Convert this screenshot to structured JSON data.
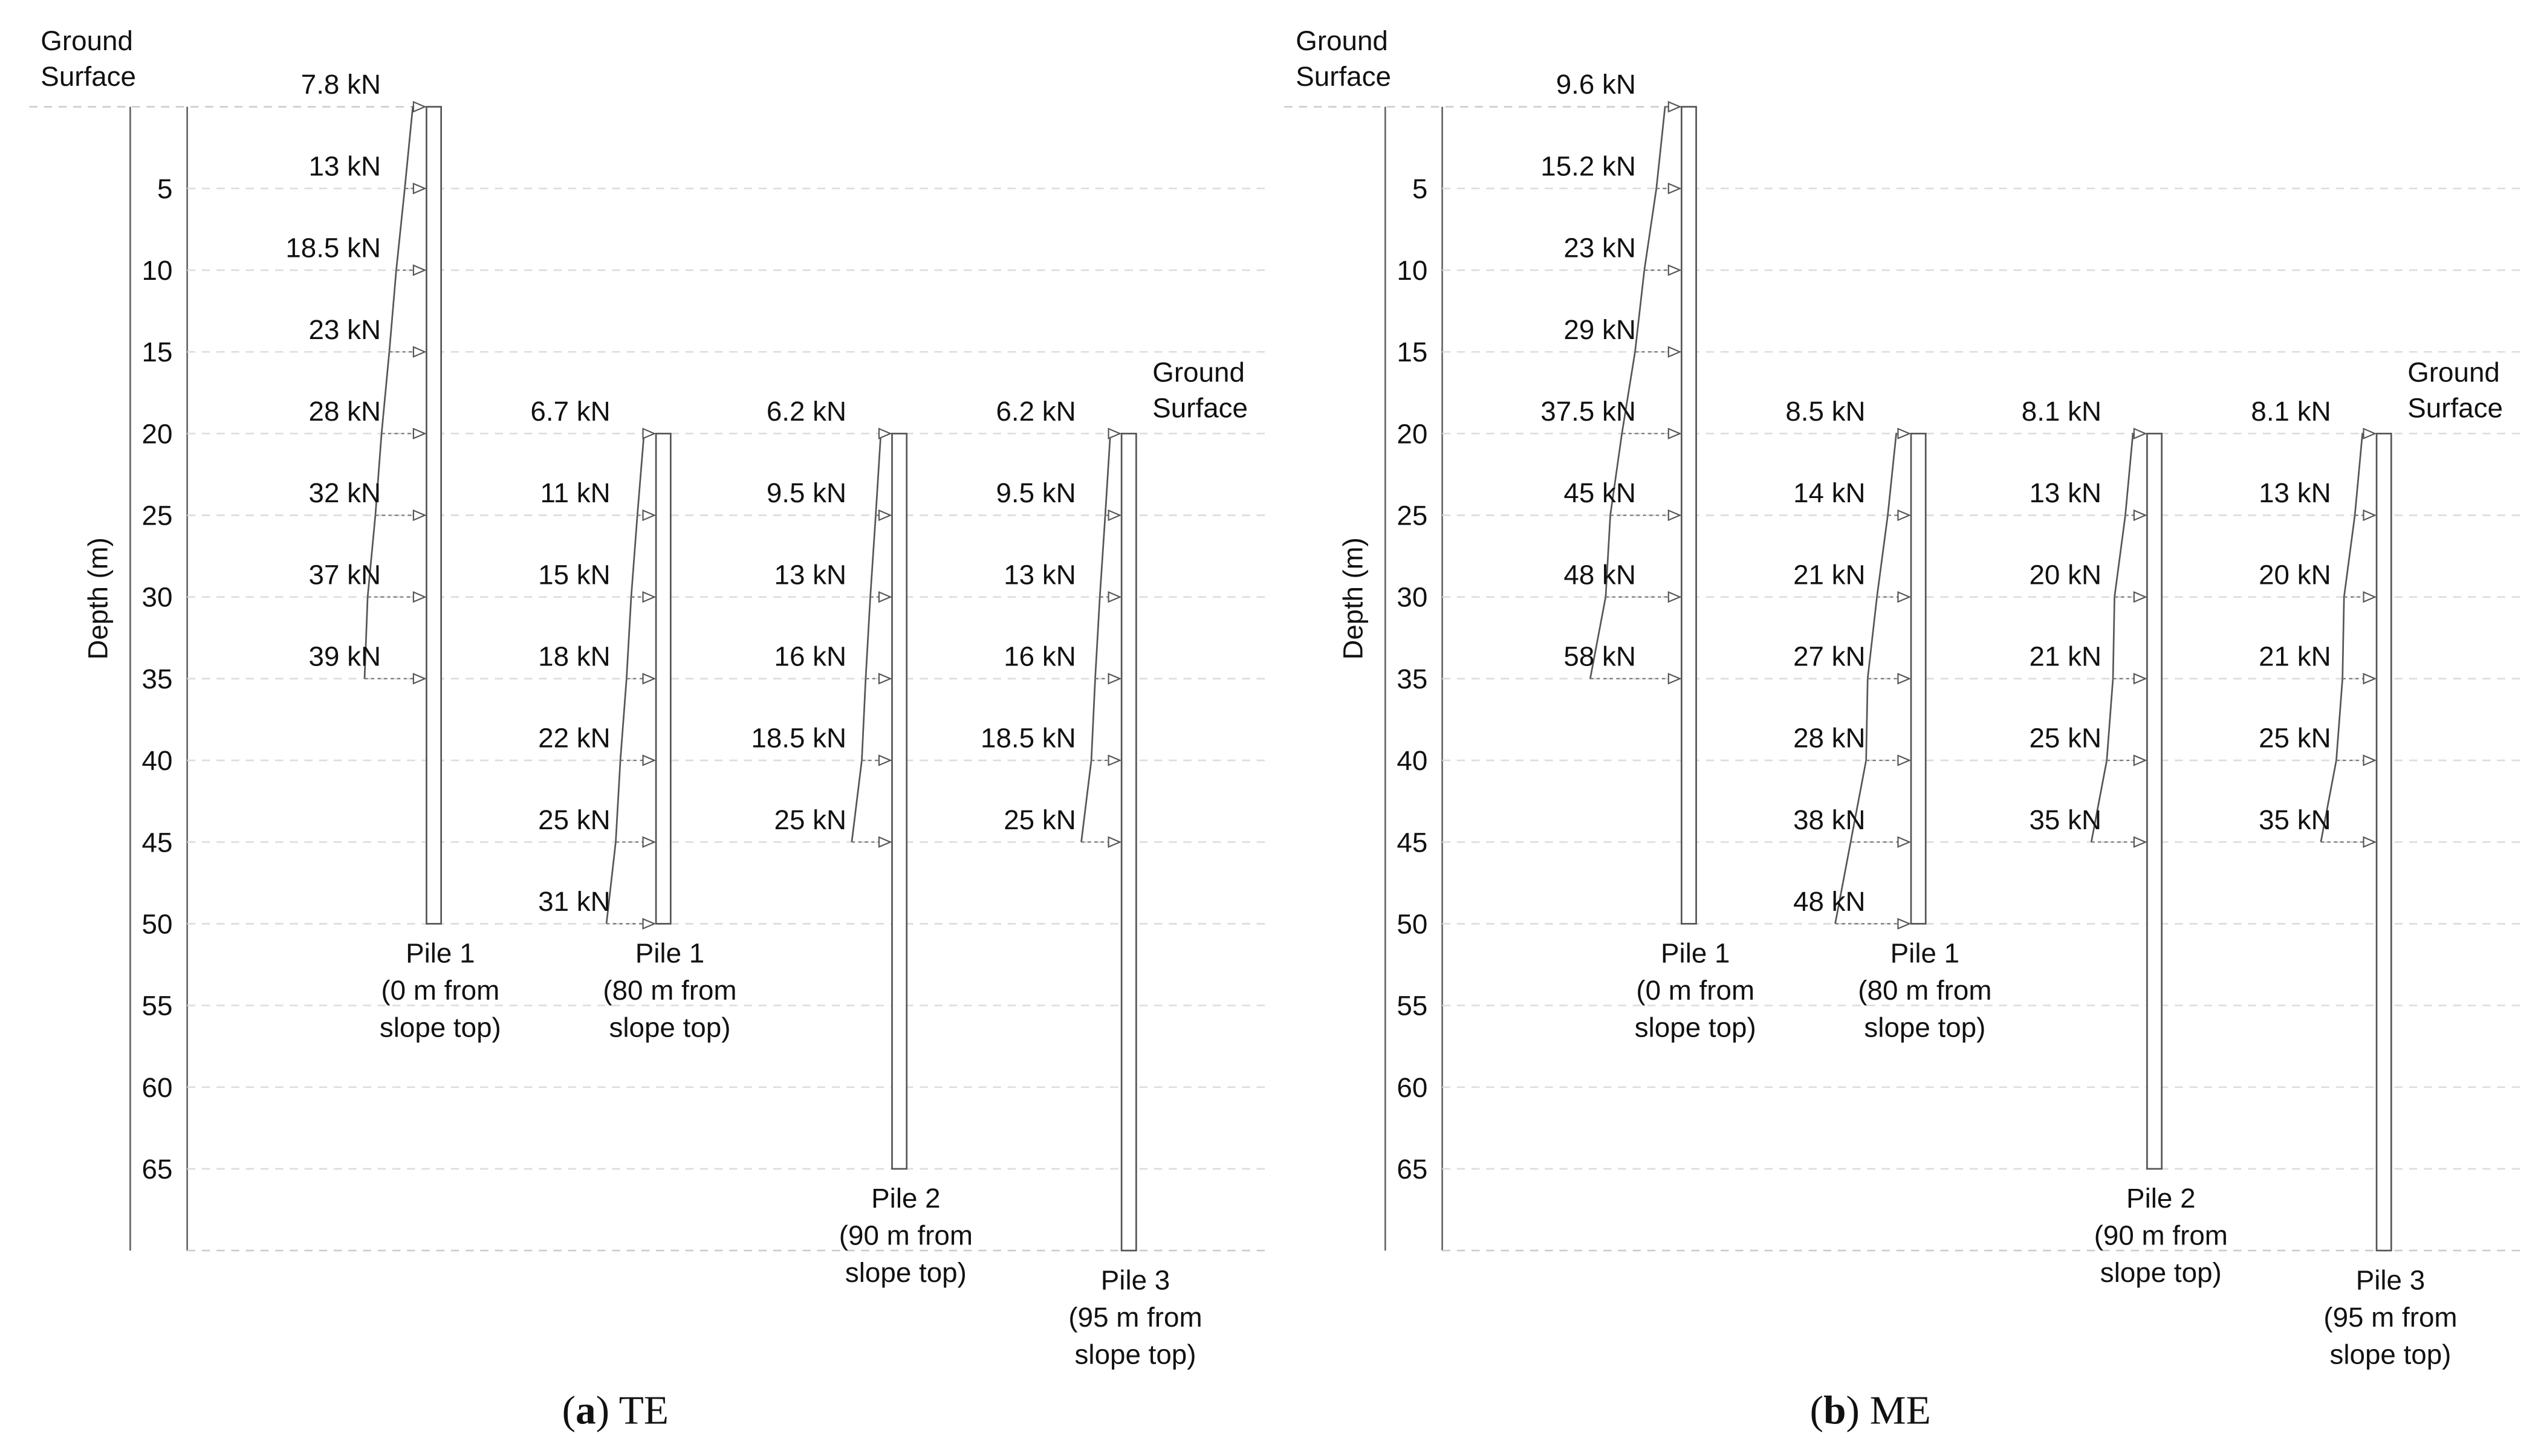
{
  "panels": [
    {
      "caption": [
        "(",
        "a",
        ") TE"
      ],
      "y_label": "Depth (m)",
      "ylim": [
        0,
        70
      ],
      "yticks": [
        5,
        10,
        15,
        20,
        25,
        30,
        35,
        40,
        45,
        50,
        55,
        60,
        65
      ],
      "ground_labels": [
        {
          "lines": [
            "Ground",
            "Surface"
          ],
          "depth": 0
        },
        {
          "lines": [
            "Ground",
            "Surface"
          ],
          "depth": 20
        }
      ],
      "piles": [
        {
          "lines": [
            "Pile 1",
            "(0 m  from",
            "slope top)"
          ],
          "top": 0,
          "bottom": 50,
          "depths": [
            0,
            5,
            10,
            15,
            20,
            25,
            30,
            35
          ],
          "values": [
            7.8,
            13,
            18.5,
            23,
            28,
            32,
            37,
            39
          ],
          "value_labels": [
            "7.8 kN",
            "13 kN",
            "18.5  kN",
            "23 kN",
            "28 kN",
            "32 kN",
            "37 kN",
            "39 kN"
          ]
        },
        {
          "lines": [
            "Pile 1",
            "(80 m  from",
            "slope top)"
          ],
          "top": 20,
          "bottom": 50,
          "depths": [
            20,
            25,
            30,
            35,
            40,
            45,
            50
          ],
          "values": [
            6.7,
            11,
            15,
            18,
            22,
            25,
            31
          ],
          "value_labels": [
            "6.7 kN",
            "11 kN",
            "15 kN",
            "18 kN",
            "22 kN",
            "25 kN",
            "31 kN"
          ]
        },
        {
          "lines": [
            "Pile 2",
            "(90 m  from",
            "slope top)"
          ],
          "top": 20,
          "bottom": 65,
          "depths": [
            20,
            25,
            30,
            35,
            40,
            45
          ],
          "values": [
            6.2,
            9.5,
            13,
            16,
            18.5,
            25
          ],
          "value_labels": [
            "6.2 kN",
            "9.5 kN",
            "13 kN",
            "16 kN",
            "18.5 kN",
            "25 kN"
          ]
        },
        {
          "lines": [
            "Pile 3",
            "(95 m  from",
            "slope top)"
          ],
          "top": 20,
          "bottom": 70,
          "depths": [
            20,
            25,
            30,
            35,
            40,
            45
          ],
          "values": [
            6.2,
            9.5,
            13,
            16,
            18.5,
            25
          ],
          "value_labels": [
            "6.2 kN",
            "9.5 kN",
            "13 kN",
            "16 kN",
            "18.5 kN",
            "25 kN"
          ]
        }
      ]
    },
    {
      "caption": [
        "(",
        "b",
        ") ME"
      ],
      "y_label": "Depth (m)",
      "ylim": [
        0,
        70
      ],
      "yticks": [
        5,
        10,
        15,
        20,
        25,
        30,
        35,
        40,
        45,
        50,
        55,
        60,
        65
      ],
      "ground_labels": [
        {
          "lines": [
            "Ground",
            "Surface"
          ],
          "depth": 0
        },
        {
          "lines": [
            "Ground",
            "Surface"
          ],
          "depth": 20
        }
      ],
      "piles": [
        {
          "lines": [
            "Pile 1",
            "(0 m  from",
            "slope top)"
          ],
          "top": 0,
          "bottom": 50,
          "depths": [
            0,
            5,
            10,
            15,
            20,
            25,
            30,
            35
          ],
          "values": [
            9.6,
            15.2,
            23,
            29,
            37.5,
            45,
            48,
            58
          ],
          "value_labels": [
            "9.6 kN",
            "15.2 kN",
            "23 kN",
            "29 kN",
            "37.5 kN",
            "45 kN",
            "48 kN",
            "58 kN"
          ]
        },
        {
          "lines": [
            "Pile 1",
            "(80 m  from",
            "slope top)"
          ],
          "top": 20,
          "bottom": 50,
          "depths": [
            20,
            25,
            30,
            35,
            40,
            45,
            50
          ],
          "values": [
            8.5,
            14,
            21,
            27,
            28,
            38,
            48
          ],
          "value_labels": [
            "8.5 kN",
            "14 kN",
            "21 kN",
            "27 kN",
            "28 kN",
            "38 kN",
            "48 kN"
          ]
        },
        {
          "lines": [
            "Pile 2",
            "(90 m  from",
            "slope top)"
          ],
          "top": 20,
          "bottom": 65,
          "depths": [
            20,
            25,
            30,
            35,
            40,
            45
          ],
          "values": [
            8.1,
            13,
            20,
            21,
            25,
            35
          ],
          "value_labels": [
            "8.1 kN",
            "13 kN",
            "20 kN",
            "21 kN",
            "25 kN",
            "35 kN"
          ]
        },
        {
          "lines": [
            "Pile 3",
            "(95 m  from",
            "slope top)"
          ],
          "top": 20,
          "bottom": 70,
          "depths": [
            20,
            25,
            30,
            35,
            40,
            45
          ],
          "values": [
            8.1,
            13,
            20,
            21,
            25,
            35
          ],
          "value_labels": [
            "8.1 kN",
            "13 kN",
            "20 kN",
            "21 kN",
            "25 kN",
            "35 kN"
          ]
        }
      ]
    }
  ]
}
